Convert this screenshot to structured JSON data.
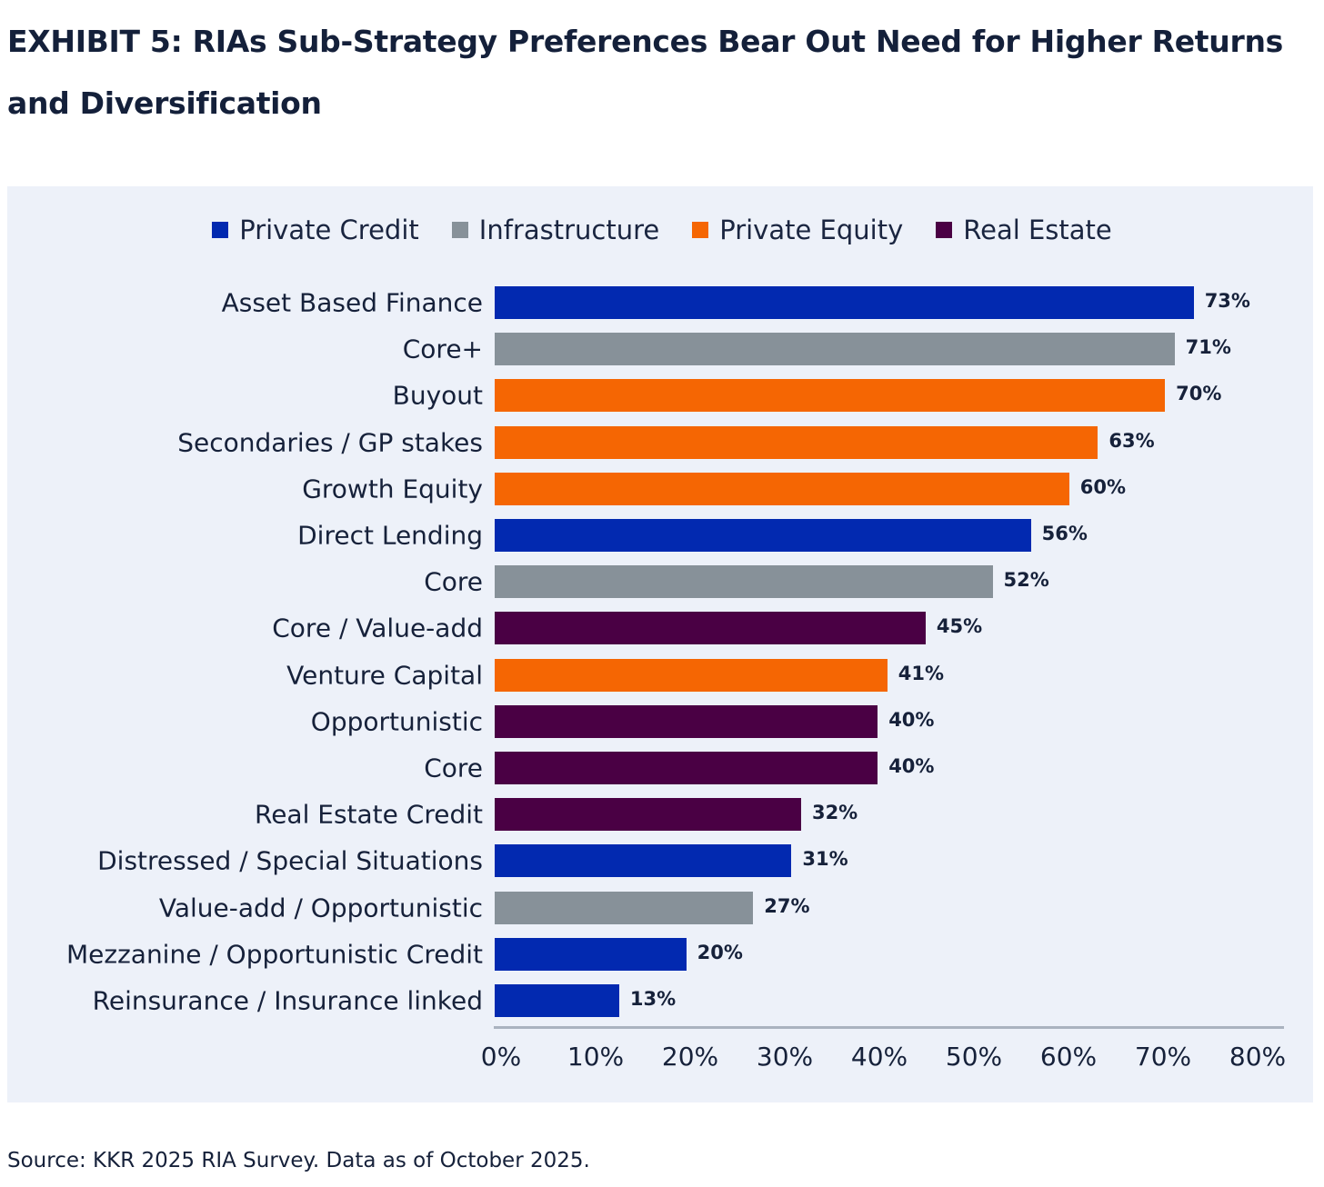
{
  "title": "EXHIBIT 5: RIAs Sub-Strategy Preferences Bear Out Need for Higher Returns and Diversification",
  "source": "Source: KKR 2025 RIA Survey. Data as of October 2025.",
  "chart_data": {
    "type": "bar",
    "orientation": "horizontal",
    "title": "EXHIBIT 5: RIAs Sub-Strategy Preferences Bear Out Need for Higher Returns and Diversification",
    "xlabel": "",
    "ylabel": "",
    "xlim": [
      0,
      80
    ],
    "legend_position": "top-center",
    "legend": [
      {
        "name": "Private Credit",
        "color": "#0229b0"
      },
      {
        "name": "Infrastructure",
        "color": "#879199"
      },
      {
        "name": "Private Equity",
        "color": "#f56603"
      },
      {
        "name": "Real Estate",
        "color": "#4a0044"
      }
    ],
    "x_ticks": [
      "0%",
      "10%",
      "20%",
      "30%",
      "40%",
      "50%",
      "60%",
      "70%",
      "80%"
    ],
    "categories": [
      "Asset Based Finance",
      "Core+",
      "Buyout",
      "Secondaries / GP stakes",
      "Growth Equity",
      "Direct Lending",
      "Core",
      "Core / Value-add",
      "Venture Capital",
      "Opportunistic",
      "Core",
      "Real Estate Credit",
      "Distressed / Special Situations",
      "Value-add / Opportunistic",
      "Mezzanine / Opportunistic Credit",
      "Reinsurance / Insurance linked"
    ],
    "values": [
      73,
      71,
      70,
      63,
      60,
      56,
      52,
      45,
      41,
      40,
      40,
      32,
      31,
      27,
      20,
      13
    ],
    "labels": [
      "73%",
      "71%",
      "70%",
      "63%",
      "60%",
      "56%",
      "52%",
      "45%",
      "41%",
      "40%",
      "40%",
      "32%",
      "31%",
      "27%",
      "20%",
      "13%"
    ],
    "series_of_bar": [
      "Private Credit",
      "Infrastructure",
      "Private Equity",
      "Private Equity",
      "Private Equity",
      "Private Credit",
      "Infrastructure",
      "Real Estate",
      "Private Equity",
      "Real Estate",
      "Real Estate",
      "Real Estate",
      "Private Credit",
      "Infrastructure",
      "Private Credit",
      "Private Credit"
    ]
  }
}
